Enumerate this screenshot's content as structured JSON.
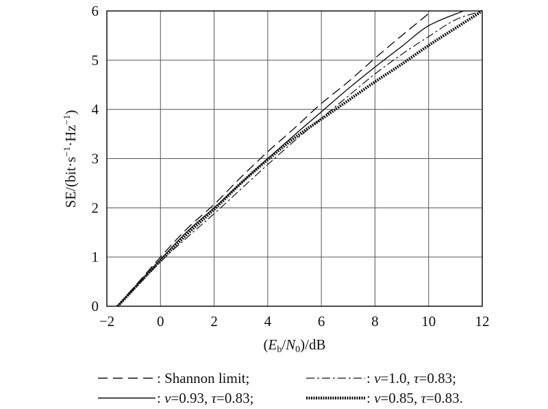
{
  "chart_data": {
    "type": "line",
    "xlabel": "(Eb/N0)/dB",
    "ylabel": "SE/(bit·s⁻¹·Hz⁻¹)",
    "xlim": [
      -2,
      12
    ],
    "ylim": [
      0,
      6
    ],
    "xticks": [
      "−2",
      "0",
      "2",
      "4",
      "6",
      "8",
      "10",
      "12"
    ],
    "yticks": [
      "0",
      "1",
      "2",
      "3",
      "4",
      "5",
      "6"
    ],
    "grid": true,
    "legend_position": "bottom",
    "series": [
      {
        "name": "Shannon limit",
        "style": "dashed",
        "x": [
          -1.6,
          0,
          1,
          2,
          3,
          4,
          5,
          6,
          7,
          8,
          9,
          10,
          10
        ],
        "y": [
          0,
          1.0,
          1.58,
          2.07,
          2.62,
          3.14,
          3.62,
          4.12,
          4.56,
          5.04,
          5.5,
          5.95,
          6.0
        ]
      },
      {
        "name": "v=1.0, τ=0.83",
        "style": "dashdot",
        "x": [
          -1.6,
          0,
          1,
          2,
          3,
          4,
          5,
          6,
          7,
          8,
          9,
          10,
          11,
          12
        ],
        "y": [
          0,
          0.9,
          1.4,
          1.88,
          2.38,
          2.88,
          3.36,
          3.82,
          4.27,
          4.72,
          5.12,
          5.48,
          5.82,
          6.0
        ]
      },
      {
        "name": "v=0.93, τ=0.83",
        "style": "solid",
        "x": [
          -1.6,
          0,
          1,
          2,
          3,
          4,
          5,
          6,
          7,
          8,
          9,
          10,
          11.3
        ],
        "y": [
          0,
          0.95,
          1.52,
          2.0,
          2.5,
          3.0,
          3.48,
          3.95,
          4.42,
          4.86,
          5.28,
          5.7,
          6.0
        ]
      },
      {
        "name": "v=0.85, τ=0.83",
        "style": "dotted-thick",
        "x": [
          -1.6,
          0,
          1,
          2,
          3,
          4,
          5,
          6,
          7,
          8,
          9,
          10,
          11,
          12
        ],
        "y": [
          0,
          0.93,
          1.47,
          1.97,
          2.5,
          2.98,
          3.42,
          3.8,
          4.18,
          4.56,
          4.92,
          5.3,
          5.65,
          6.0
        ]
      }
    ]
  },
  "legend": {
    "shannon": "Shannon limit;",
    "v10_v": "v",
    "v10_val": "=1.0, ",
    "v10_t": "τ",
    "v10_tval": "=0.83;",
    "v093_v": "v",
    "v093_val": "=0.93, ",
    "v093_t": "τ",
    "v093_tval": "=0.83;",
    "v085_v": "v",
    "v085_val": "=0.85, ",
    "v085_t": "τ",
    "v085_tval": "=0.83."
  }
}
